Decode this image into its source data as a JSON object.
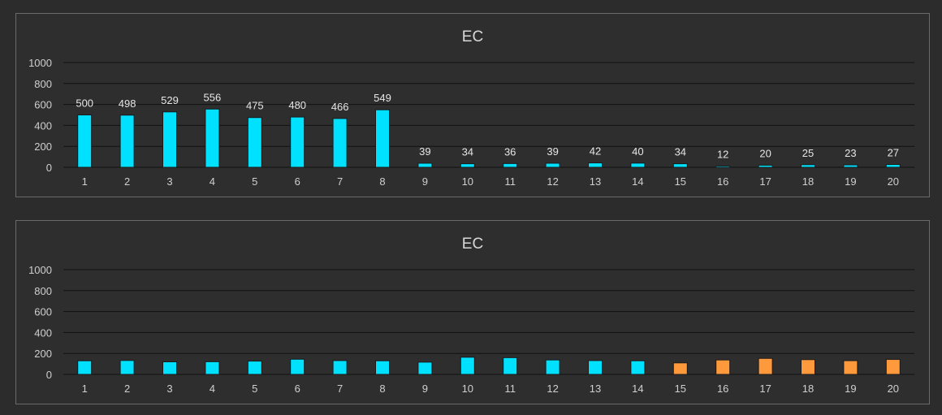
{
  "chart_data": [
    {
      "type": "bar",
      "title": "EC",
      "categories": [
        "1",
        "2",
        "3",
        "4",
        "5",
        "6",
        "7",
        "8",
        "9",
        "10",
        "11",
        "12",
        "13",
        "14",
        "15",
        "16",
        "17",
        "18",
        "19",
        "20"
      ],
      "values": [
        500,
        498,
        529,
        556,
        475,
        480,
        466,
        549,
        39,
        34,
        36,
        39,
        42,
        40,
        34,
        12,
        20,
        25,
        23,
        27
      ],
      "data_labels": true,
      "ylim": [
        0,
        1000
      ],
      "yticks": [
        0,
        200,
        400,
        600,
        800,
        1000
      ],
      "grid": true,
      "colors": [
        "#00e0ff"
      ]
    },
    {
      "type": "bar",
      "title": "EC",
      "categories": [
        "1",
        "2",
        "3",
        "4",
        "5",
        "6",
        "7",
        "8",
        "9",
        "10",
        "11",
        "12",
        "13",
        "14",
        "15",
        "16",
        "17",
        "18",
        "19",
        "20"
      ],
      "values": [
        130,
        133,
        120,
        121,
        127,
        145,
        132,
        130,
        117,
        164,
        160,
        138,
        132,
        130,
        110,
        138,
        153,
        141,
        131,
        143
      ],
      "data_labels": false,
      "ylim": [
        0,
        1000
      ],
      "yticks": [
        0,
        200,
        400,
        600,
        800,
        1000
      ],
      "grid": true,
      "colors": [
        "#00e0ff",
        "#00e0ff",
        "#00e0ff",
        "#00e0ff",
        "#00e0ff",
        "#00e0ff",
        "#00e0ff",
        "#00e0ff",
        "#00e0ff",
        "#00e0ff",
        "#00e0ff",
        "#00e0ff",
        "#00e0ff",
        "#00e0ff",
        "#ff9a3c",
        "#ff9a3c",
        "#ff9a3c",
        "#ff9a3c",
        "#ff9a3c",
        "#ff9a3c"
      ]
    }
  ]
}
